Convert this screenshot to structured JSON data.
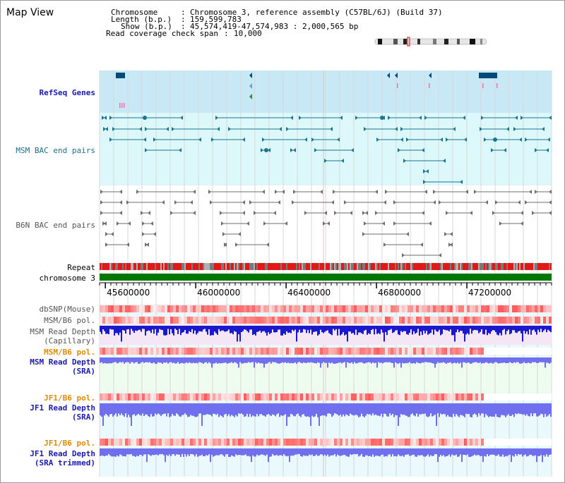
{
  "app": {
    "title": "Map View"
  },
  "info": {
    "chromosome_label": "Chromosome",
    "chromosome_value": "Chromosome 3, reference assembly (C57BL/6J) (Build 37)",
    "length_label": "Length (b.p.)",
    "length_value": "159,599,783",
    "show_label": "Show (b.p.)",
    "show_value": "45,574,419-47,574,983 : 2,000,565 bp",
    "coverage_label": "Read coverage check span",
    "coverage_value": "10,000"
  },
  "tracks": {
    "refseq": "RefSeq Genes",
    "msm_bac": "MSM BAC end pairs",
    "b6n_bac": "B6N BAC end pairs",
    "repeat": "Repeat",
    "chromosome": "chromosome 3",
    "dbsnp": "dbSNP(Mouse)",
    "msm_b6_pol": "MSM/B6 pol.",
    "msm_read_depth_cap_1": "MSM Read Depth",
    "msm_read_depth_cap_2": "(Capillary)",
    "msm_b6_pol_2": "MSM/B6 pol.",
    "msm_read_depth_sra_1": "MSM Read Depth",
    "msm_read_depth_sra_2": "(SRA)",
    "jf1_b6_pol": "JF1/B6 pol.",
    "jf1_read_depth_sra_1": "JF1 Read Depth",
    "jf1_read_depth_sra_2": "(SRA)",
    "jf1_b6_pol_2": "JF1/B6 pol.",
    "jf1_read_depth_trim_1": "JF1 Read Depth",
    "jf1_read_depth_trim_2": "(SRA trimmed)"
  },
  "axis": {
    "ticks": [
      {
        "value": 45600000,
        "label": "45600000"
      },
      {
        "value": 46000000,
        "label": "46000000"
      },
      {
        "value": 46400000,
        "label": "46400000"
      },
      {
        "value": 46800000,
        "label": "46800000"
      },
      {
        "value": 47200000,
        "label": "47200000"
      }
    ],
    "start": 45574419,
    "end": 47574983
  },
  "colors": {
    "refseq_bg": "#c9e8f6",
    "msm_bac_bg": "#dcf8fb",
    "track_bg": "#eaf9fb",
    "gene": "#004a7a",
    "msm_bac": "#1a7590",
    "b6n_bac": "#6e6e6e",
    "chromosome": "#007800",
    "repeat_red": "#e01818",
    "repeat_gray": "#7a7a7a",
    "depth_blue": "#1a1acc",
    "depth_light": "#7070ee"
  }
}
